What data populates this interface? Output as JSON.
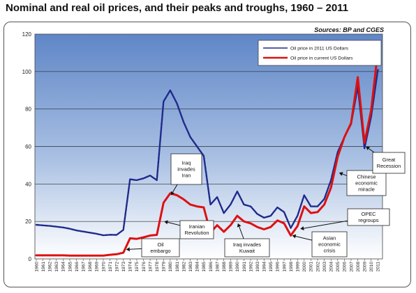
{
  "chart_data": {
    "type": "line",
    "title": "Nominal and real oil prices, and their peaks and troughs, 1960 – 2011",
    "source": "Sources: BP and CGES",
    "ylim": [
      0,
      120
    ],
    "yticks": [
      "0",
      "20",
      "40",
      "60",
      "80",
      "100",
      "120"
    ],
    "grid": true,
    "legend_position": "top-right",
    "legend": [
      "Oil price in 2011 US Dollars",
      "Oil price in current US Dollars"
    ],
    "x": [
      "1960",
      "1961",
      "1962",
      "1963",
      "1964",
      "1965",
      "1966",
      "1967",
      "1968",
      "1969",
      "1970",
      "1971",
      "1972",
      "1973",
      "1974",
      "1975",
      "1976",
      "1977",
      "1978",
      "1979",
      "1980",
      "1981",
      "1982",
      "1983",
      "1984",
      "1985",
      "1986",
      "1987",
      "1988",
      "1989",
      "1990",
      "1991",
      "1992",
      "1993",
      "1994",
      "1995",
      "1996",
      "1997",
      "1998",
      "1999",
      "2000",
      "2001",
      "2002",
      "2003",
      "2004",
      "2005",
      "2006",
      "2007",
      "2008",
      "2009",
      "2010",
      "2011"
    ],
    "series": [
      {
        "name": "Oil price in 2011 US Dollars",
        "color": "#1f2a8c",
        "values": [
          18.2,
          17.9,
          17.6,
          17.2,
          16.8,
          16.1,
          15.2,
          14.6,
          14.0,
          13.4,
          12.6,
          12.9,
          12.8,
          15.5,
          42.5,
          42.0,
          43.0,
          44.5,
          42.0,
          84.0,
          90.0,
          83.0,
          73.0,
          65.0,
          60.0,
          55.0,
          29.0,
          33.0,
          24.5,
          29.0,
          36.0,
          29.0,
          28.0,
          24.0,
          22.0,
          23.0,
          27.5,
          25.0,
          16.5,
          23.0,
          34.0,
          28.0,
          28.0,
          32.0,
          42.0,
          57.0,
          65.0,
          72.0,
          92.0,
          59.0,
          76.0,
          101.0
        ]
      },
      {
        "name": "Oil price in current US Dollars",
        "color": "#dd1111",
        "values": [
          1.9,
          1.9,
          1.9,
          1.9,
          1.9,
          1.8,
          1.8,
          1.8,
          1.8,
          1.8,
          1.8,
          2.2,
          2.5,
          3.3,
          11.0,
          10.7,
          11.5,
          12.5,
          12.8,
          30.0,
          35.0,
          34.0,
          31.8,
          29.0,
          28.0,
          27.5,
          14.0,
          18.0,
          14.5,
          18.0,
          23.0,
          20.0,
          19.0,
          17.0,
          15.8,
          17.0,
          20.5,
          19.0,
          12.5,
          17.5,
          28.0,
          24.5,
          25.0,
          29.0,
          38.0,
          54.5,
          65.0,
          72.5,
          97.0,
          62.0,
          79.5,
          111.0
        ]
      }
    ],
    "annotations": [
      {
        "lines": [
          "Oil",
          "embargo"
        ]
      },
      {
        "lines": [
          "Iraq",
          "invades",
          "Iran"
        ]
      },
      {
        "lines": [
          "Iranian",
          "Revolution"
        ]
      },
      {
        "lines": [
          "Iraq invades",
          "Kuwait"
        ]
      },
      {
        "lines": [
          "Asian",
          "economic",
          "crisis"
        ]
      },
      {
        "lines": [
          "OPEC",
          "regroups"
        ]
      },
      {
        "lines": [
          "Chinese",
          "economic",
          "miracle"
        ]
      },
      {
        "lines": [
          "Great",
          "Recession"
        ]
      }
    ]
  }
}
